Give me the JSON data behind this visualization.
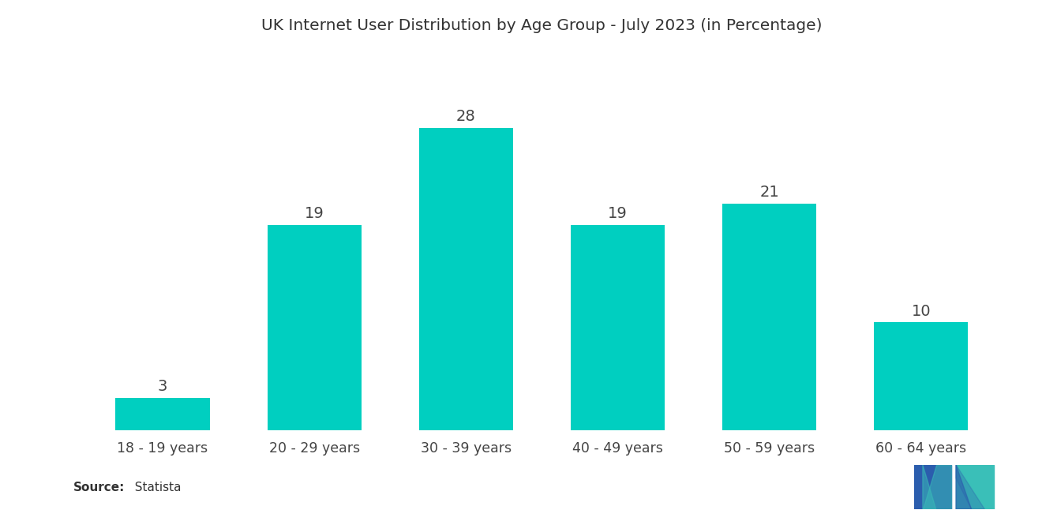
{
  "title": "UK Internet User Distribution by Age Group - July 2023 (in Percentage)",
  "categories": [
    "18 - 19 years",
    "20 - 29 years",
    "30 - 39 years",
    "40 - 49 years",
    "50 - 59 years",
    "60 - 64 years"
  ],
  "values": [
    3,
    19,
    28,
    19,
    21,
    10
  ],
  "bar_color": "#00CFC0",
  "background_color": "#ffffff",
  "title_fontsize": 14.5,
  "label_fontsize": 14,
  "tick_fontsize": 12.5,
  "source_bold": "Source:",
  "source_rest": "  Statista",
  "ylim": [
    0,
    34
  ],
  "bar_width": 0.62,
  "logo_blue": "#2B5DAD",
  "logo_teal": "#3ABFB8"
}
